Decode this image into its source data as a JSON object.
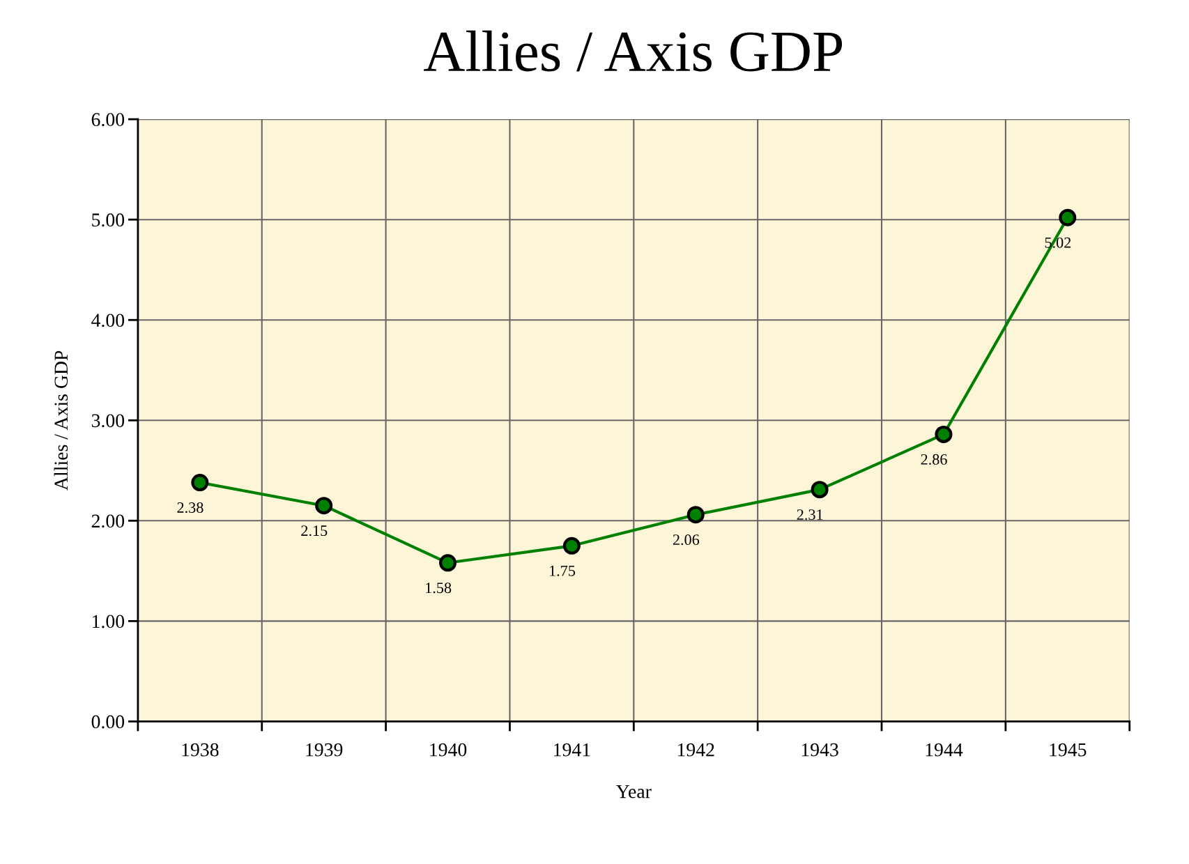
{
  "chart_data": {
    "type": "line",
    "title": "Allies / Axis GDP",
    "xlabel": "Year",
    "ylabel": "Allies / Axis GDP",
    "categories": [
      "1938",
      "1939",
      "1940",
      "1941",
      "1942",
      "1943",
      "1944",
      "1945"
    ],
    "series": [
      {
        "color": "#008000",
        "values": [
          2.38,
          2.15,
          1.58,
          1.75,
          2.06,
          2.31,
          2.86,
          5.02
        ]
      }
    ],
    "ylim": [
      0,
      6
    ],
    "yticks": [
      {
        "value": 0,
        "label": "0.00"
      },
      {
        "value": 1,
        "label": "1.00"
      },
      {
        "value": 2,
        "label": "2.00"
      },
      {
        "value": 3,
        "label": "3.00"
      },
      {
        "value": 4,
        "label": "4.00"
      },
      {
        "value": 5,
        "label": "5.00"
      },
      {
        "value": 6,
        "label": "6.00"
      }
    ],
    "grid": true,
    "marker": "circle",
    "line_style": "solid",
    "data_labels": true
  }
}
